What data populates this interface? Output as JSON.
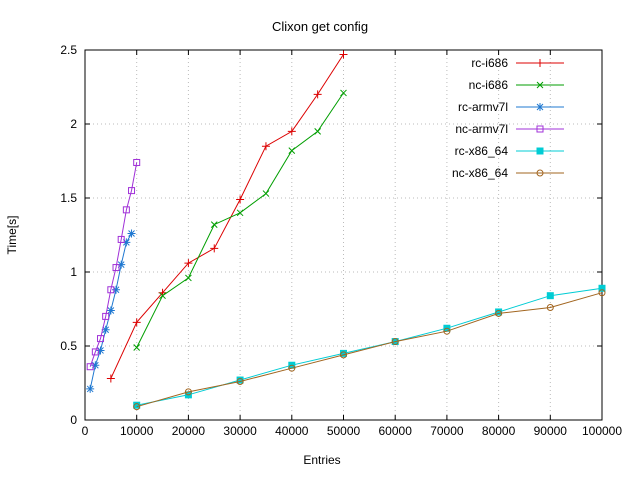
{
  "chart_data": {
    "type": "line",
    "title": "Clixon get config",
    "xlabel": "Entries",
    "ylabel": "Time[s]",
    "xlim": [
      0,
      100000
    ],
    "ylim": [
      0,
      2.5
    ],
    "xticks": [
      0,
      10000,
      20000,
      30000,
      40000,
      50000,
      60000,
      70000,
      80000,
      90000,
      100000
    ],
    "yticks": [
      0,
      0.5,
      1,
      1.5,
      2,
      2.5
    ],
    "grid": true,
    "grid_style": "dotted",
    "legend_position": "top-right-inside",
    "background_color": "#ffffff",
    "border_color": "#000000",
    "grid_color": "#bbbbbb",
    "series": [
      {
        "name": "rc-i686",
        "color": "#dc0000",
        "marker": "plus",
        "x": [
          5000,
          10000,
          15000,
          20000,
          25000,
          30000,
          35000,
          40000,
          45000,
          50000
        ],
        "y": [
          0.28,
          0.66,
          0.86,
          1.06,
          1.16,
          1.49,
          1.85,
          1.95,
          2.2,
          2.47
        ]
      },
      {
        "name": "nc-i686",
        "color": "#009e00",
        "marker": "cross",
        "x": [
          10000,
          15000,
          20000,
          25000,
          30000,
          35000,
          40000,
          45000,
          50000
        ],
        "y": [
          0.49,
          0.84,
          0.96,
          1.32,
          1.4,
          1.53,
          1.82,
          1.95,
          2.21
        ]
      },
      {
        "name": "rc-armv7l",
        "color": "#1f78d1",
        "marker": "asterisk",
        "x": [
          1000,
          2000,
          3000,
          4000,
          5000,
          6000,
          7000,
          8000,
          9000
        ],
        "y": [
          0.21,
          0.37,
          0.47,
          0.61,
          0.74,
          0.88,
          1.05,
          1.2,
          1.26
        ]
      },
      {
        "name": "nc-armv7l",
        "color": "#a030d8",
        "marker": "square-open",
        "x": [
          1000,
          2000,
          3000,
          4000,
          5000,
          6000,
          7000,
          8000,
          9000,
          10000
        ],
        "y": [
          0.36,
          0.46,
          0.55,
          0.7,
          0.88,
          1.03,
          1.22,
          1.42,
          1.55,
          1.74
        ]
      },
      {
        "name": "rc-x86_64",
        "color": "#00ccd4",
        "marker": "square-filled",
        "x": [
          10000,
          20000,
          30000,
          40000,
          50000,
          60000,
          70000,
          80000,
          90000,
          100000
        ],
        "y": [
          0.1,
          0.17,
          0.27,
          0.37,
          0.45,
          0.53,
          0.62,
          0.73,
          0.84,
          0.89
        ]
      },
      {
        "name": "nc-x86_64",
        "color": "#a2651f",
        "marker": "circle-open",
        "x": [
          10000,
          20000,
          30000,
          40000,
          50000,
          60000,
          70000,
          80000,
          90000,
          100000
        ],
        "y": [
          0.09,
          0.19,
          0.26,
          0.35,
          0.44,
          0.53,
          0.6,
          0.72,
          0.76,
          0.86
        ]
      }
    ]
  }
}
